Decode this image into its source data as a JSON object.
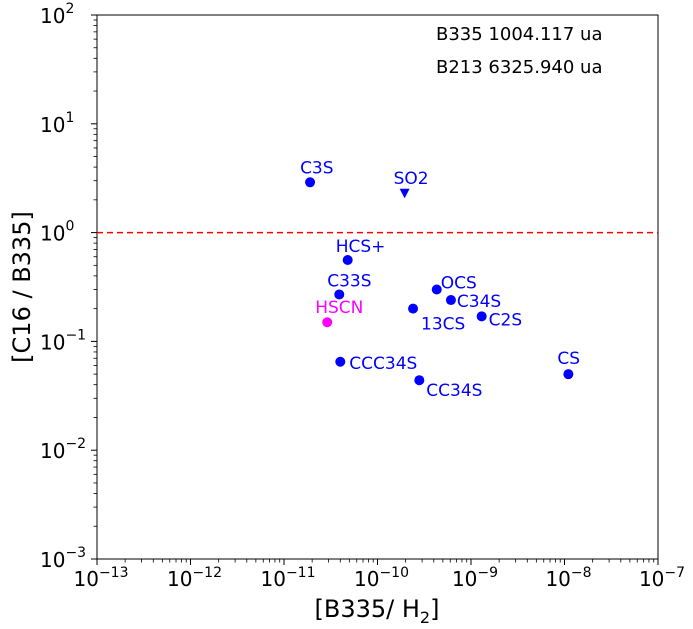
{
  "chart_data": {
    "type": "scatter",
    "title": "",
    "xlabel": "[B335/ H",
    "xlabel_sub": "2",
    "xlabel_close": "]",
    "ylabel": "[C16 / B335]",
    "xscale": "log",
    "yscale": "log",
    "xlim": [
      1e-13,
      1e-07
    ],
    "ylim": [
      0.001,
      100
    ],
    "x_ticks": [
      {
        "base": "10",
        "exp": "−13",
        "value": 1e-13
      },
      {
        "base": "10",
        "exp": "−12",
        "value": 1e-12
      },
      {
        "base": "10",
        "exp": "−11",
        "value": 1e-11
      },
      {
        "base": "10",
        "exp": "−10",
        "value": 1e-10
      },
      {
        "base": "10",
        "exp": "−9",
        "value": 1e-09
      },
      {
        "base": "10",
        "exp": "−8",
        "value": 1e-08
      },
      {
        "base": "10",
        "exp": "−7",
        "value": 1e-07
      }
    ],
    "y_ticks": [
      {
        "base": "10",
        "exp": "−3",
        "value": 0.001
      },
      {
        "base": "10",
        "exp": "−2",
        "value": 0.01
      },
      {
        "base": "10",
        "exp": "−1",
        "value": 0.1
      },
      {
        "base": "10",
        "exp": "0",
        "value": 1
      },
      {
        "base": "10",
        "exp": "1",
        "value": 10
      },
      {
        "base": "10",
        "exp": "2",
        "value": 100
      }
    ],
    "reference_line": {
      "y": 1,
      "style": "dashed",
      "color": "#ff0000"
    },
    "annotations": [
      "B335 1004.117 ua",
      "B213 6325.940 ua"
    ],
    "points": [
      {
        "label": "C3S",
        "x": 1.9e-11,
        "y": 2.9,
        "marker": "circle",
        "color": "#0000ff"
      },
      {
        "label": "SO2",
        "x": 1.95e-10,
        "y": 2.3,
        "marker": "triangle-down",
        "color": "#0000ff"
      },
      {
        "label": "HCS+",
        "x": 4.8e-11,
        "y": 0.56,
        "marker": "circle",
        "color": "#0000ff"
      },
      {
        "label": "C33S",
        "x": 3.9e-11,
        "y": 0.27,
        "marker": "circle",
        "color": "#0000ff"
      },
      {
        "label": "HSCN",
        "x": 2.9e-11,
        "y": 0.15,
        "marker": "circle",
        "color": "#ff00ff"
      },
      {
        "label": "OCS",
        "x": 4.3e-10,
        "y": 0.3,
        "marker": "circle",
        "color": "#0000ff"
      },
      {
        "label": "C34S",
        "x": 6.1e-10,
        "y": 0.24,
        "marker": "circle",
        "color": "#0000ff"
      },
      {
        "label": "13CS",
        "x": 2.4e-10,
        "y": 0.2,
        "marker": "circle",
        "color": "#0000ff"
      },
      {
        "label": "C2S",
        "x": 1.3e-09,
        "y": 0.17,
        "marker": "circle",
        "color": "#0000ff"
      },
      {
        "label": "CCC34S",
        "x": 4e-11,
        "y": 0.065,
        "marker": "circle",
        "color": "#0000ff"
      },
      {
        "label": "CC34S",
        "x": 2.8e-10,
        "y": 0.044,
        "marker": "circle",
        "color": "#0000ff"
      },
      {
        "label": "CS",
        "x": 1.1e-08,
        "y": 0.05,
        "marker": "circle",
        "color": "#0000ff"
      }
    ]
  }
}
